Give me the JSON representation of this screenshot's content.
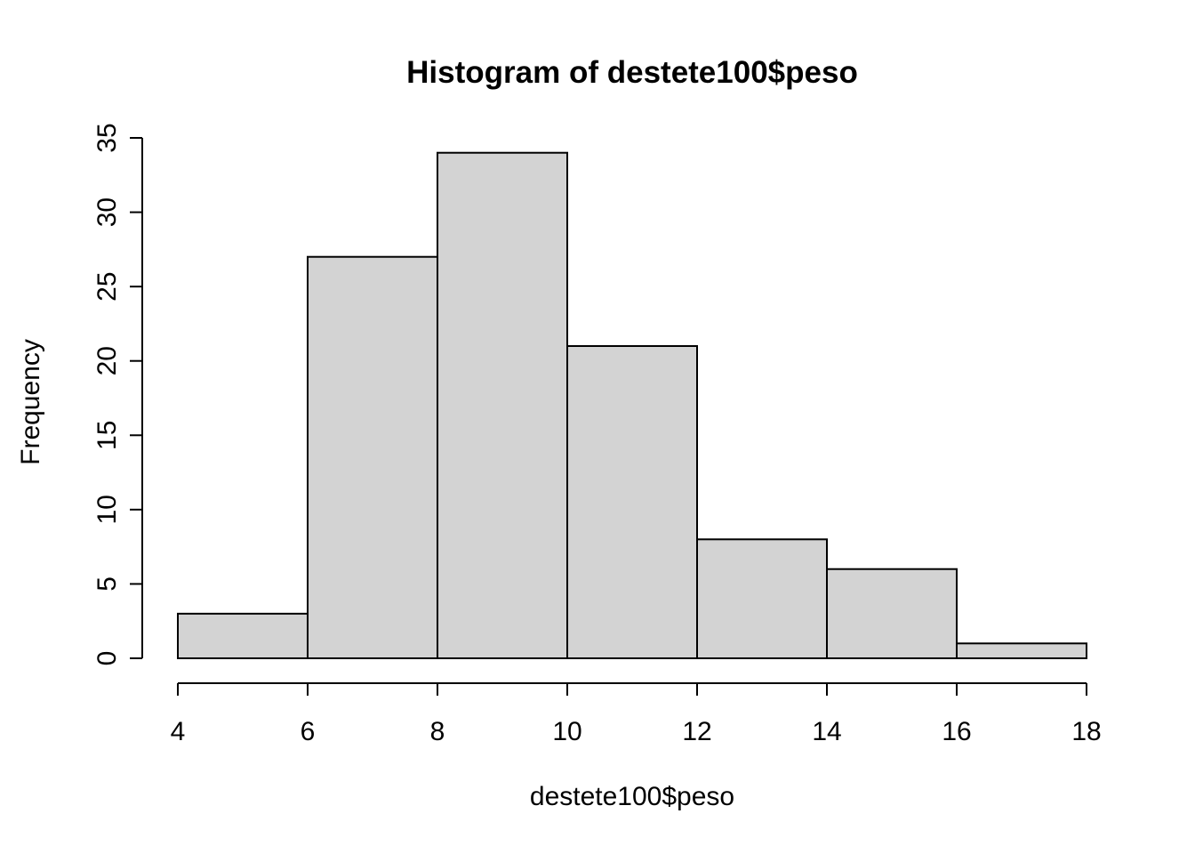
{
  "chart_data": {
    "type": "bar",
    "subtype": "histogram",
    "title": "Histogram of destete100$peso",
    "xlabel": "destete100$peso",
    "ylabel": "Frequency",
    "bin_edges": [
      4,
      6,
      8,
      10,
      12,
      14,
      16,
      18
    ],
    "values": [
      3,
      27,
      34,
      21,
      8,
      6,
      1
    ],
    "xlim": [
      4,
      18
    ],
    "ylim": [
      0,
      35
    ],
    "x_ticks": [
      4,
      6,
      8,
      10,
      12,
      14,
      16,
      18
    ],
    "y_ticks": [
      0,
      5,
      10,
      15,
      20,
      25,
      30,
      35
    ],
    "grid": false,
    "legend": false,
    "colors": {
      "bar_fill": "#d3d3d3",
      "bar_stroke": "#000000",
      "axis": "#000000",
      "background": "#ffffff",
      "text": "#000000"
    }
  }
}
